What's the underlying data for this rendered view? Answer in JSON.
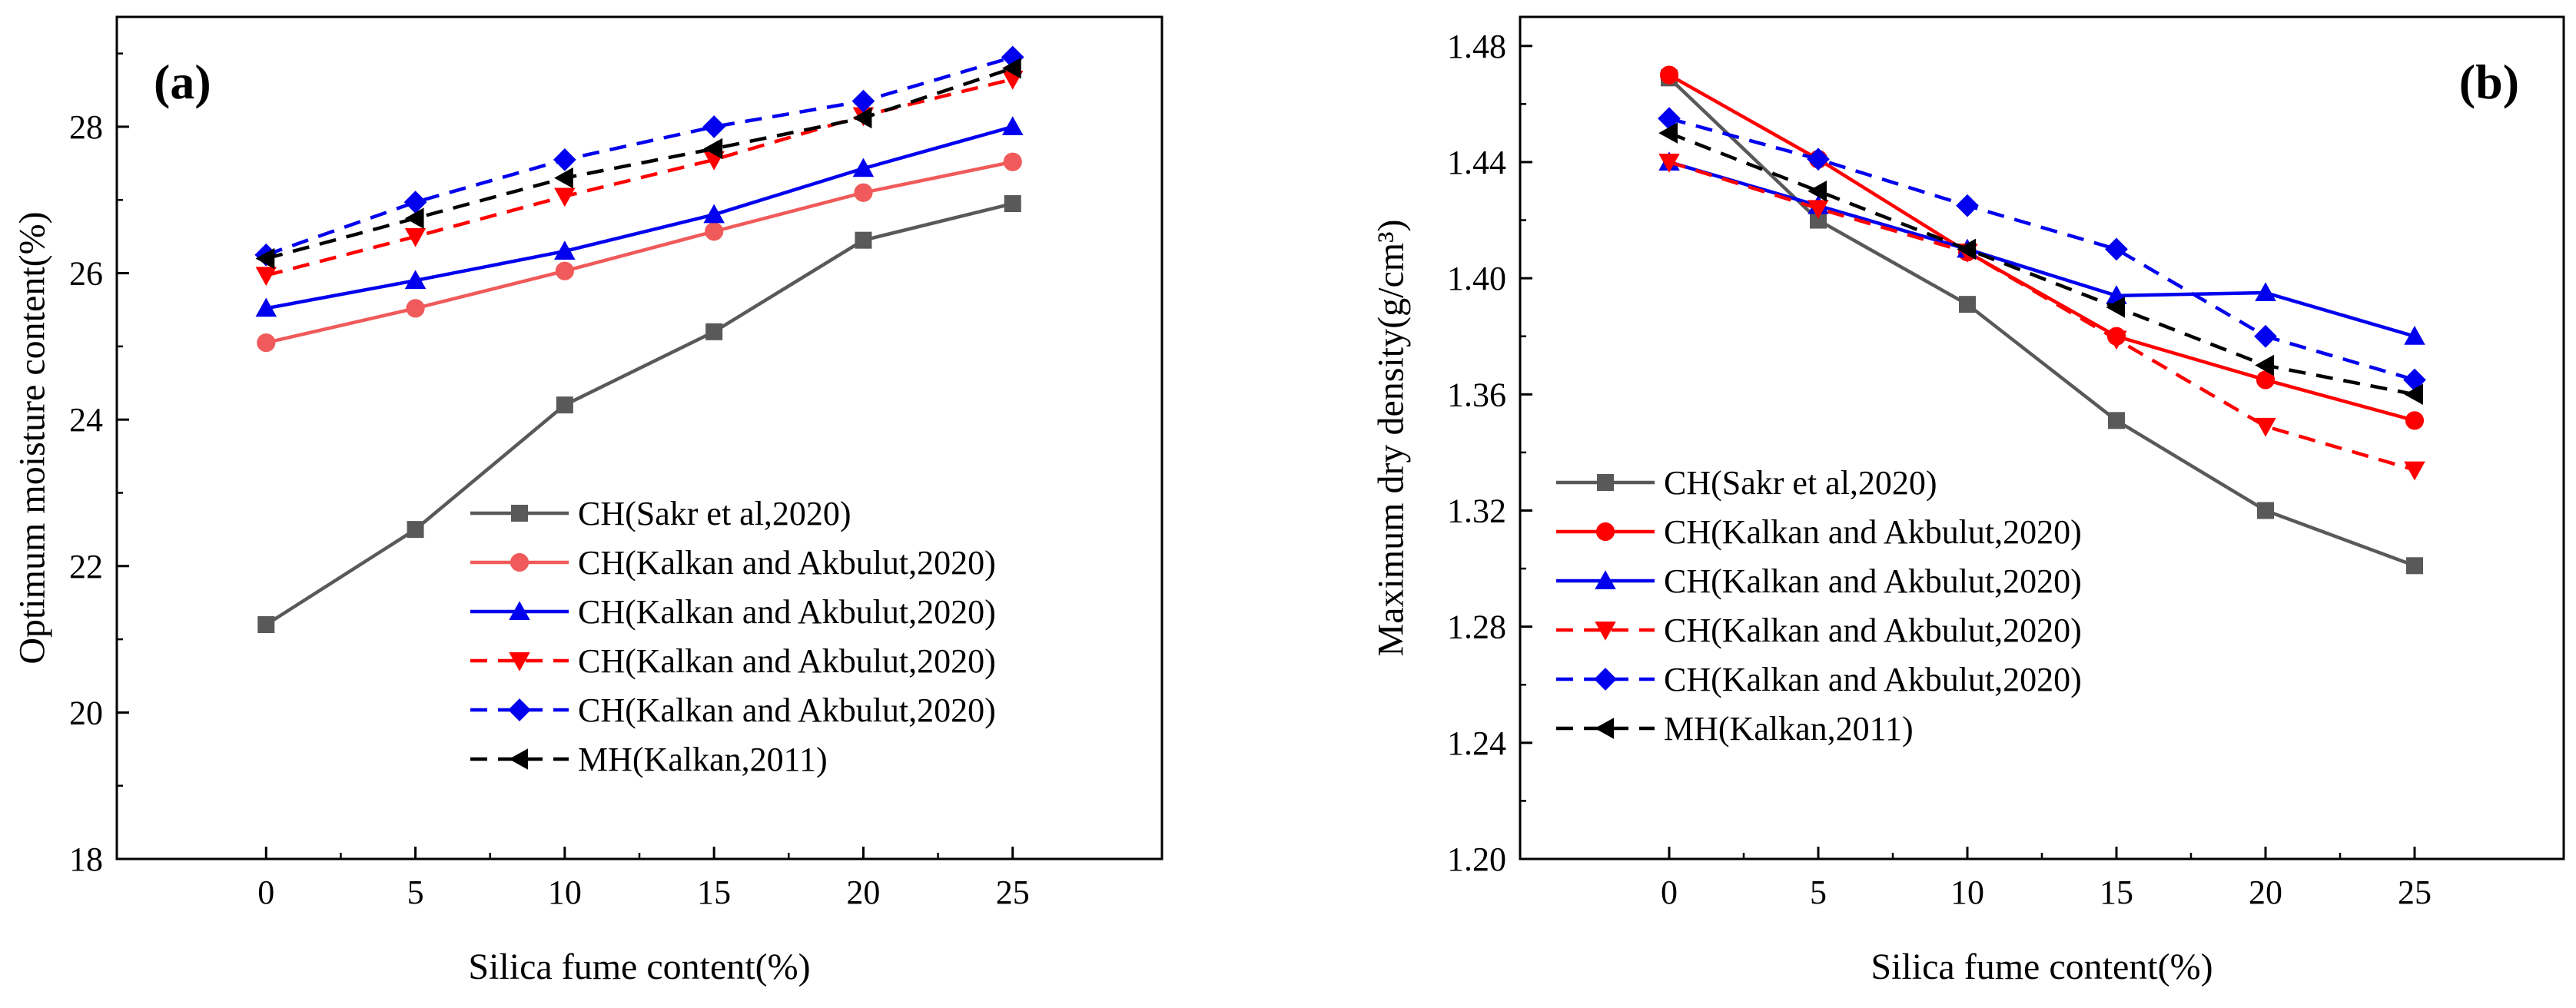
{
  "chart_data": [
    {
      "type": "line",
      "panel_label": "(a)",
      "xlabel": "Silica fume content(%)",
      "ylabel": "Optimum moisture content(%)",
      "x": [
        0,
        5,
        10,
        15,
        20,
        25
      ],
      "xlim": [
        -5,
        30
      ],
      "xticks": [
        0,
        5,
        10,
        15,
        20,
        25
      ],
      "ylim": [
        18,
        29.5
      ],
      "yticks": [
        18,
        20,
        22,
        24,
        26,
        28
      ],
      "ytick_decimals": 0,
      "legend_position": "lower-right",
      "series": [
        {
          "name": "CH(Sakr et al,2020)",
          "color": "#595959",
          "dash": "solid",
          "marker": "square",
          "values": [
            21.2,
            22.5,
            24.2,
            25.2,
            26.45,
            26.95
          ]
        },
        {
          "name": "CH(Kalkan and Akbulut,2020)",
          "color": "#F05A5A",
          "dash": "solid",
          "marker": "circle",
          "values": [
            25.05,
            25.52,
            26.03,
            26.57,
            27.1,
            27.52
          ]
        },
        {
          "name": "CH(Kalkan and Akbulut,2020)",
          "color": "#0000EE",
          "dash": "solid",
          "marker": "triangle-up",
          "values": [
            25.52,
            25.9,
            26.3,
            26.8,
            27.43,
            28.0
          ]
        },
        {
          "name": "CH(Kalkan and Akbulut,2020)",
          "color": "#FF0000",
          "dash": "dashed",
          "marker": "triangle-down",
          "values": [
            25.97,
            26.5,
            27.05,
            27.55,
            28.15,
            28.65
          ]
        },
        {
          "name": "CH(Kalkan and Akbulut,2020)",
          "color": "#0000EE",
          "dash": "dashed",
          "marker": "diamond",
          "values": [
            26.25,
            26.97,
            27.55,
            28.0,
            28.35,
            28.95
          ]
        },
        {
          "name": "MH(Kalkan,2011)",
          "color": "#000000",
          "dash": "dashed",
          "marker": "triangle-left",
          "values": [
            26.2,
            26.75,
            27.3,
            27.7,
            28.12,
            28.8
          ]
        }
      ]
    },
    {
      "type": "line",
      "panel_label": "(b)",
      "xlabel": "Silica fume content(%)",
      "ylabel": "Maximum dry density(g/cm³)",
      "x": [
        0,
        5,
        10,
        15,
        20,
        25
      ],
      "xlim": [
        -5,
        30
      ],
      "xticks": [
        0,
        5,
        10,
        15,
        20,
        25
      ],
      "ylim": [
        1.2,
        1.49
      ],
      "yticks": [
        1.2,
        1.24,
        1.28,
        1.32,
        1.36,
        1.4,
        1.44,
        1.48
      ],
      "ytick_decimals": 2,
      "legend_position": "lower-left",
      "series": [
        {
          "name": "CH(Sakr et al,2020)",
          "color": "#595959",
          "dash": "solid",
          "marker": "square",
          "values": [
            1.469,
            1.42,
            1.391,
            1.351,
            1.32,
            1.301
          ]
        },
        {
          "name": "CH(Kalkan and Akbulut,2020)",
          "color": "#FF0000",
          "dash": "solid",
          "marker": "circle",
          "values": [
            1.47,
            1.441,
            1.409,
            1.38,
            1.365,
            1.351
          ]
        },
        {
          "name": "CH(Kalkan and Akbulut,2020)",
          "color": "#0000EE",
          "dash": "solid",
          "marker": "triangle-up",
          "values": [
            1.44,
            1.425,
            1.41,
            1.394,
            1.395,
            1.38
          ]
        },
        {
          "name": "CH(Kalkan and Akbulut,2020)",
          "color": "#FF0000",
          "dash": "dashed",
          "marker": "triangle-down",
          "values": [
            1.44,
            1.424,
            1.409,
            1.379,
            1.349,
            1.334
          ]
        },
        {
          "name": "CH(Kalkan and Akbulut,2020)",
          "color": "#0000EE",
          "dash": "dashed",
          "marker": "diamond",
          "values": [
            1.455,
            1.441,
            1.425,
            1.41,
            1.38,
            1.365
          ]
        },
        {
          "name": "MH(Kalkan,2011)",
          "color": "#000000",
          "dash": "dashed",
          "marker": "triangle-left",
          "values": [
            1.45,
            1.43,
            1.41,
            1.39,
            1.37,
            1.36
          ]
        }
      ]
    }
  ]
}
